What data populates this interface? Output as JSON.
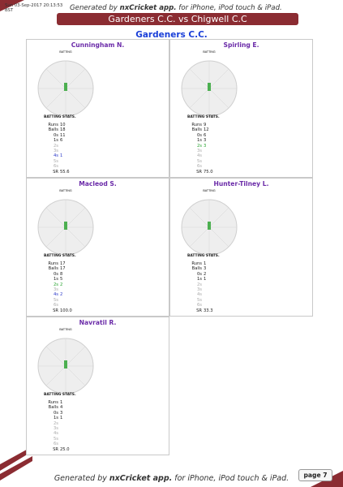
{
  "header": {
    "timestamp": "Sun 03-Sep-2017 20:13:53 BST",
    "generated_prefix": "Generated by ",
    "generated_app": "nxCricket app.",
    "generated_suffix": " for iPhone, iPod touch & iPad.",
    "match_title": "Gardeners C.C. vs Chigwell C.C"
  },
  "team": "Gardeners C.C.",
  "chart_labels": {
    "batting": "BATTING",
    "stats_title": "BATTING STATS."
  },
  "players": [
    {
      "name": "Cunningham N.",
      "stats": [
        {
          "k": "Runs",
          "v": "10",
          "style": ""
        },
        {
          "k": "Balls",
          "v": "18",
          "style": ""
        },
        {
          "k": "0s",
          "v": "11",
          "style": ""
        },
        {
          "k": "1s",
          "v": "6",
          "style": ""
        },
        {
          "k": "2s",
          "v": "",
          "style": "dim"
        },
        {
          "k": "3s",
          "v": "",
          "style": "dim"
        },
        {
          "k": "4s",
          "v": "1",
          "style": "b"
        },
        {
          "k": "5s",
          "v": "",
          "style": "dim"
        },
        {
          "k": "6s",
          "v": "",
          "style": "dim"
        },
        {
          "k": "SR",
          "v": "55.6",
          "style": ""
        }
      ]
    },
    {
      "name": "Spirling E.",
      "stats": [
        {
          "k": "Runs",
          "v": "9",
          "style": ""
        },
        {
          "k": "Balls",
          "v": "12",
          "style": ""
        },
        {
          "k": "0s",
          "v": "6",
          "style": ""
        },
        {
          "k": "1s",
          "v": "3",
          "style": ""
        },
        {
          "k": "2s",
          "v": "3",
          "style": "g"
        },
        {
          "k": "3s",
          "v": "",
          "style": "dim"
        },
        {
          "k": "4s",
          "v": "",
          "style": "dim"
        },
        {
          "k": "5s",
          "v": "",
          "style": "dim"
        },
        {
          "k": "6s",
          "v": "",
          "style": "dim"
        },
        {
          "k": "SR",
          "v": "75.0",
          "style": ""
        }
      ]
    },
    {
      "name": "Macleod S.",
      "stats": [
        {
          "k": "Runs",
          "v": "17",
          "style": ""
        },
        {
          "k": "Balls",
          "v": "17",
          "style": ""
        },
        {
          "k": "0s",
          "v": "8",
          "style": ""
        },
        {
          "k": "1s",
          "v": "5",
          "style": ""
        },
        {
          "k": "2s",
          "v": "2",
          "style": "g"
        },
        {
          "k": "3s",
          "v": "",
          "style": "dim"
        },
        {
          "k": "4s",
          "v": "2",
          "style": "b"
        },
        {
          "k": "5s",
          "v": "",
          "style": "dim"
        },
        {
          "k": "6s",
          "v": "",
          "style": "dim"
        },
        {
          "k": "SR",
          "v": "100.0",
          "style": ""
        }
      ]
    },
    {
      "name": "Hunter-Tilney L.",
      "stats": [
        {
          "k": "Runs",
          "v": "1",
          "style": ""
        },
        {
          "k": "Balls",
          "v": "3",
          "style": ""
        },
        {
          "k": "0s",
          "v": "2",
          "style": ""
        },
        {
          "k": "1s",
          "v": "1",
          "style": ""
        },
        {
          "k": "2s",
          "v": "",
          "style": "dim"
        },
        {
          "k": "3s",
          "v": "",
          "style": "dim"
        },
        {
          "k": "4s",
          "v": "",
          "style": "dim"
        },
        {
          "k": "5s",
          "v": "",
          "style": "dim"
        },
        {
          "k": "6s",
          "v": "",
          "style": "dim"
        },
        {
          "k": "SR",
          "v": "33.3",
          "style": ""
        }
      ]
    },
    {
      "name": "Navratil R.",
      "stats": [
        {
          "k": "Runs",
          "v": "1",
          "style": ""
        },
        {
          "k": "Balls",
          "v": "4",
          "style": ""
        },
        {
          "k": "0s",
          "v": "3",
          "style": ""
        },
        {
          "k": "1s",
          "v": "1",
          "style": ""
        },
        {
          "k": "2s",
          "v": "",
          "style": "dim"
        },
        {
          "k": "3s",
          "v": "",
          "style": "dim"
        },
        {
          "k": "4s",
          "v": "",
          "style": "dim"
        },
        {
          "k": "5s",
          "v": "",
          "style": "dim"
        },
        {
          "k": "6s",
          "v": "",
          "style": "dim"
        },
        {
          "k": "SR",
          "v": "25.0",
          "style": ""
        }
      ]
    }
  ],
  "footer": {
    "generated_prefix": "Generated by ",
    "generated_app": "nxCricket app.",
    "generated_suffix": " for iPhone, iPod touch & iPad.",
    "page": "page 7"
  },
  "colors": {
    "brand": "#8b2c32",
    "team": "#1a3fd8",
    "player": "#6a2aa8",
    "twos": "#23a22c",
    "fours": "#2b39c9"
  }
}
